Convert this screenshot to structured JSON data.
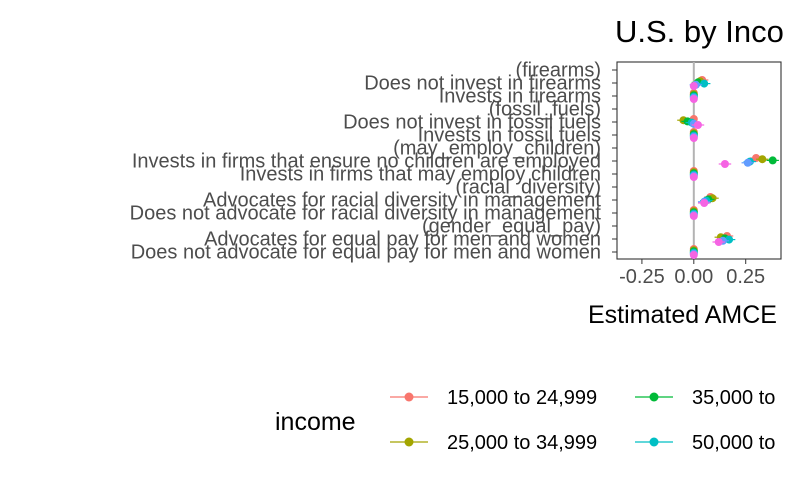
{
  "chart_data": {
    "type": "scatter",
    "title": "U.S. by Inco",
    "xlabel": "Estimated AMCE",
    "ylabel": "",
    "xlim": [
      -0.37,
      0.42
    ],
    "x_ticks": [
      -0.25,
      0.0,
      0.25
    ],
    "x_tick_labels": [
      "-0.25",
      "0.00",
      "0.25"
    ],
    "grid": false,
    "reference_line_x": 0,
    "categories": [
      "(firearms)",
      "Does not invest in firearms",
      "Invests in firearms",
      "(fossil_fuels)",
      "Does not invest in fossil fuels",
      "Invests in fossil fuels",
      "(may_employ_children)",
      "Invests in firms that ensure no children are employed",
      "Invests in firms that may employ children",
      "(racial_diversity)",
      "Advocates for racial diversity in management",
      "Does not advocate for racial diversity in management",
      "(gender_equal_pay)",
      "Advocates for equal pay for men and women",
      "Does not advocate for equal pay for men and women"
    ],
    "legend": {
      "title": "income",
      "position": "bottom",
      "entries": [
        "15,000 to 24,999",
        "25,000 to 34,999",
        "35,000 to",
        "50,000 to"
      ]
    },
    "series": [
      {
        "name": "15,000 to 24,999",
        "color": "#f8766d",
        "values": [
          null,
          0.04,
          0.0,
          null,
          0.0,
          0.0,
          null,
          0.3,
          0.0,
          null,
          0.08,
          0.0,
          null,
          0.16,
          0.0
        ]
      },
      {
        "name": "25,000 to 34,999",
        "color": "#a3a500",
        "values": [
          null,
          0.03,
          0.0,
          null,
          -0.05,
          0.0,
          null,
          0.33,
          0.0,
          null,
          0.09,
          0.0,
          null,
          0.13,
          0.0
        ]
      },
      {
        "name": "35,000 to",
        "color": "#00ba38",
        "values": [
          null,
          0.02,
          0.0,
          null,
          -0.03,
          0.0,
          null,
          0.38,
          0.0,
          null,
          0.07,
          0.0,
          null,
          0.15,
          0.0
        ]
      },
      {
        "name": "50,000 to",
        "color": "#00bfc4",
        "values": [
          null,
          0.05,
          0.0,
          null,
          -0.01,
          0.0,
          null,
          0.27,
          0.0,
          null,
          0.06,
          0.0,
          null,
          0.17,
          0.0
        ]
      },
      {
        "name": "",
        "color": "#619cff",
        "values": [
          null,
          0.01,
          0.0,
          null,
          0.0,
          0.0,
          null,
          0.26,
          0.0,
          null,
          0.05,
          0.0,
          null,
          0.14,
          0.0
        ]
      },
      {
        "name": "",
        "color": "#f564e3",
        "values": [
          null,
          0.0,
          0.0,
          null,
          0.02,
          0.0,
          null,
          0.15,
          0.0,
          null,
          0.05,
          0.0,
          null,
          0.12,
          0.0
        ]
      }
    ]
  }
}
